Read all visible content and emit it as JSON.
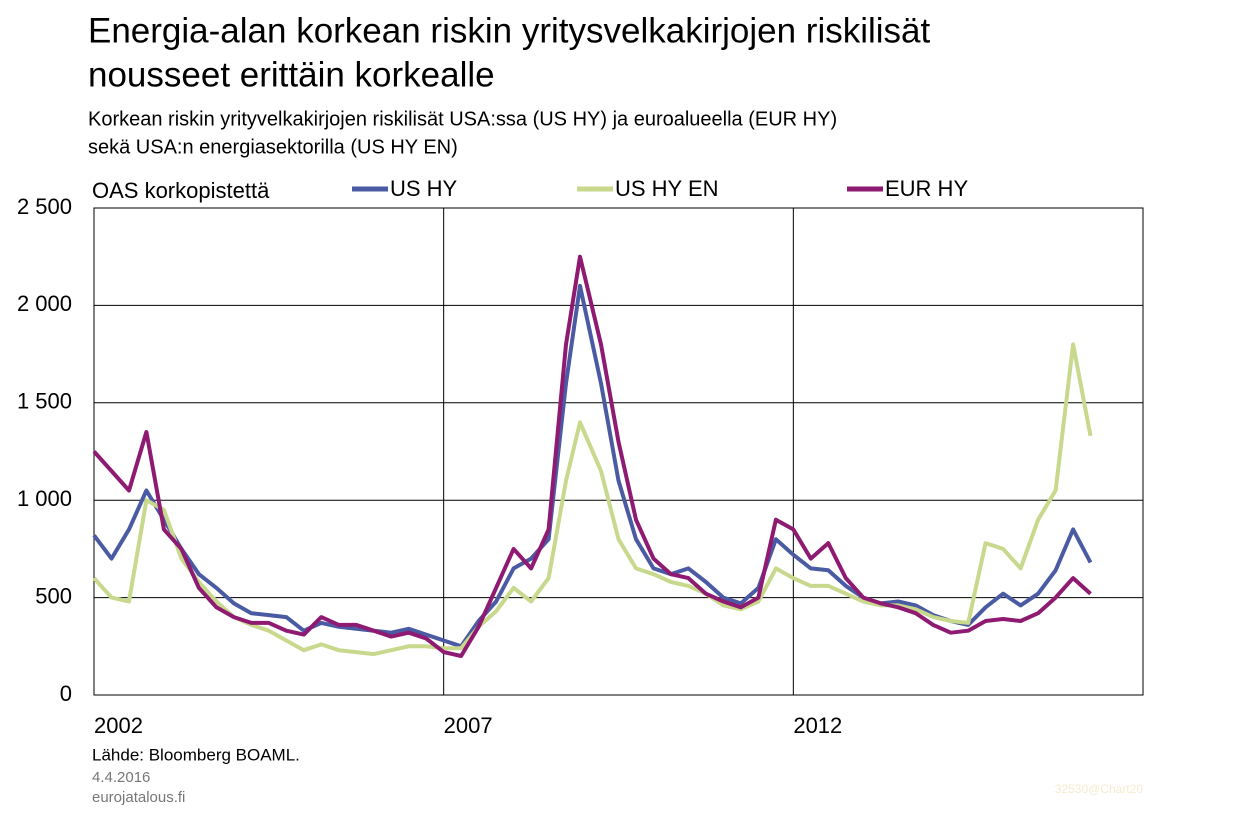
{
  "chart_data": {
    "type": "line",
    "title": [
      "Energia-alan korkean riskin yritysvelkakirjojen riskilisät",
      "nousseet erittäin korkealle"
    ],
    "subtitle": [
      "Korkean riskin yrityvelkakirjojen riskilisät USA:ssa (US HY) ja euroalueella (EUR HY)",
      "sekä USA:n energiasektorilla (US HY EN)"
    ],
    "y_label": "OAS korkopistettä",
    "source": "Lähde: Bloomberg  BOAML.",
    "date": "4.4.2016",
    "website": "eurojatalous.fi",
    "watermark": "32530@Chart20",
    "grid": true,
    "xlim": [
      2002,
      2017
    ],
    "xticks": [
      2002,
      2007,
      2012
    ],
    "ylim": [
      0,
      2500
    ],
    "yticks": [
      0,
      500,
      {
        "value": 1000,
        "label": "1 000"
      },
      {
        "value": 1500,
        "label": "1 500"
      },
      {
        "value": 2000,
        "label": "2 000"
      },
      {
        "value": 2500,
        "label": "2 500"
      }
    ],
    "x": [
      2002,
      2002.25,
      2002.5,
      2002.75,
      2003,
      2003.25,
      2003.5,
      2003.75,
      2004,
      2004.25,
      2004.5,
      2004.75,
      2005,
      2005.25,
      2005.5,
      2005.75,
      2006,
      2006.25,
      2006.5,
      2006.75,
      2007,
      2007.25,
      2007.5,
      2007.75,
      2008,
      2008.25,
      2008.5,
      2008.75,
      2008.95,
      2009.25,
      2009.5,
      2009.75,
      2010,
      2010.25,
      2010.5,
      2010.75,
      2011,
      2011.25,
      2011.5,
      2011.75,
      2012,
      2012.25,
      2012.5,
      2012.75,
      2013,
      2013.25,
      2013.5,
      2013.75,
      2014,
      2014.25,
      2014.5,
      2014.75,
      2015,
      2015.25,
      2015.5,
      2015.75,
      2016,
      2016.25
    ],
    "series": [
      {
        "name": "US HY",
        "color": "#4a5aa3",
        "values": [
          820,
          700,
          850,
          1050,
          900,
          750,
          620,
          550,
          470,
          420,
          410,
          400,
          330,
          370,
          350,
          340,
          330,
          320,
          340,
          310,
          280,
          250,
          380,
          480,
          650,
          700,
          800,
          1600,
          2100,
          1600,
          1100,
          800,
          650,
          620,
          650,
          580,
          500,
          470,
          550,
          800,
          720,
          650,
          640,
          560,
          500,
          470,
          480,
          460,
          410,
          380,
          360,
          450,
          520,
          460,
          520,
          640,
          850,
          680
        ]
      },
      {
        "name": "US HY EN",
        "color": "#c8d88c",
        "values": [
          600,
          500,
          480,
          1000,
          950,
          700,
          580,
          480,
          400,
          360,
          330,
          280,
          230,
          260,
          230,
          220,
          210,
          230,
          250,
          250,
          240,
          240,
          350,
          430,
          550,
          480,
          600,
          1100,
          1400,
          1150,
          800,
          650,
          620,
          580,
          560,
          520,
          460,
          440,
          480,
          650,
          600,
          560,
          560,
          520,
          480,
          460,
          460,
          440,
          400,
          380,
          370,
          780,
          750,
          650,
          900,
          1050,
          1800,
          1330
        ]
      },
      {
        "name": "EUR HY",
        "color": "#8e1a72",
        "values": [
          1250,
          1150,
          1050,
          1350,
          850,
          750,
          550,
          450,
          400,
          370,
          370,
          330,
          310,
          400,
          360,
          360,
          330,
          300,
          320,
          290,
          220,
          200,
          350,
          550,
          750,
          650,
          850,
          1800,
          2250,
          1800,
          1300,
          900,
          700,
          620,
          600,
          520,
          480,
          450,
          500,
          900,
          850,
          700,
          780,
          600,
          500,
          470,
          450,
          420,
          360,
          320,
          330,
          380,
          390,
          380,
          420,
          500,
          600,
          520
        ]
      }
    ]
  }
}
